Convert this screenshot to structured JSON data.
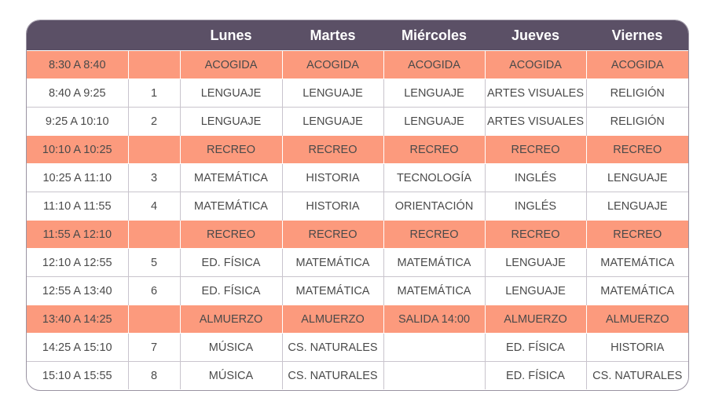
{
  "header": {
    "days": [
      "Lunes",
      "Martes",
      "Miércoles",
      "Jueves",
      "Viernes"
    ]
  },
  "rows": [
    {
      "time": "8:30 A 8:40",
      "period": "",
      "highlight": true,
      "cells": [
        "ACOGIDA",
        "ACOGIDA",
        "ACOGIDA",
        "ACOGIDA",
        "ACOGIDA"
      ]
    },
    {
      "time": "8:40 A 9:25",
      "period": "1",
      "highlight": false,
      "cells": [
        "LENGUAJE",
        "LENGUAJE",
        "LENGUAJE",
        "ARTES VISUALES",
        "RELIGIÓN"
      ]
    },
    {
      "time": "9:25 A 10:10",
      "period": "2",
      "highlight": false,
      "cells": [
        "LENGUAJE",
        "LENGUAJE",
        "LENGUAJE",
        "ARTES VISUALES",
        "RELIGIÓN"
      ]
    },
    {
      "time": "10:10 A 10:25",
      "period": "",
      "highlight": true,
      "cells": [
        "RECREO",
        "RECREO",
        "RECREO",
        "RECREO",
        "RECREO"
      ]
    },
    {
      "time": "10:25 A 11:10",
      "period": "3",
      "highlight": false,
      "cells": [
        "MATEMÁTICA",
        "HISTORIA",
        "TECNOLOGÍA",
        "INGLÉS",
        "LENGUAJE"
      ]
    },
    {
      "time": "11:10 A 11:55",
      "period": "4",
      "highlight": false,
      "cells": [
        "MATEMÁTICA",
        "HISTORIA",
        "ORIENTACIÓN",
        "INGLÉS",
        "LENGUAJE"
      ]
    },
    {
      "time": "11:55 A 12:10",
      "period": "",
      "highlight": true,
      "cells": [
        "RECREO",
        "RECREO",
        "RECREO",
        "RECREO",
        "RECREO"
      ]
    },
    {
      "time": "12:10 A 12:55",
      "period": "5",
      "highlight": false,
      "cells": [
        "ED. FÍSICA",
        "MATEMÁTICA",
        "MATEMÁTICA",
        "LENGUAJE",
        "MATEMÁTICA"
      ]
    },
    {
      "time": "12:55 A 13:40",
      "period": "6",
      "highlight": false,
      "cells": [
        "ED. FÍSICA",
        "MATEMÁTICA",
        "MATEMÁTICA",
        "LENGUAJE",
        "MATEMÁTICA"
      ]
    },
    {
      "time": "13:40 A 14:25",
      "period": "",
      "highlight": true,
      "cells": [
        "ALMUERZO",
        "ALMUERZO",
        "SALIDA 14:00",
        "ALMUERZO",
        "ALMUERZO"
      ]
    },
    {
      "time": "14:25 A 15:10",
      "period": "7",
      "highlight": false,
      "cells": [
        "MÚSICA",
        "CS. NATURALES",
        "",
        "ED. FÍSICA",
        "HISTORIA"
      ]
    },
    {
      "time": "15:10 A 15:55",
      "period": "8",
      "highlight": false,
      "cells": [
        "MÚSICA",
        "CS. NATURALES",
        "",
        "ED. FÍSICA",
        "CS. NATURALES"
      ]
    }
  ],
  "colors": {
    "header_bg": "#5b5066",
    "highlight_bg": "#fc9a7d",
    "text": "#4a4a4a"
  }
}
